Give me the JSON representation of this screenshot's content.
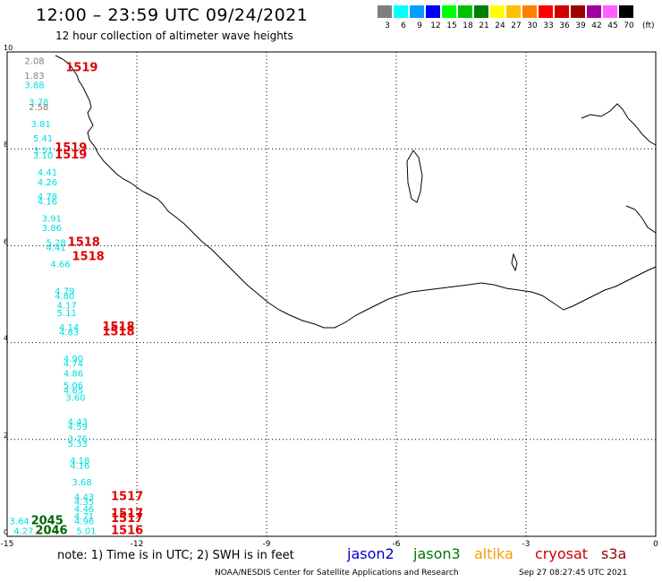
{
  "header": {
    "title": "12:00 – 23:59 UTC 09/24/2021",
    "subtitle": "12 hour collection of altimeter wave heights"
  },
  "legend": {
    "unit": "(ft)",
    "bins": [
      {
        "label": "3",
        "color": "#7f7f7f"
      },
      {
        "label": "6",
        "color": "#00ffff"
      },
      {
        "label": "9",
        "color": "#00a0ff"
      },
      {
        "label": "12",
        "color": "#0000ff"
      },
      {
        "label": "15",
        "color": "#00ff00"
      },
      {
        "label": "18",
        "color": "#00c000"
      },
      {
        "label": "21",
        "color": "#008000"
      },
      {
        "label": "24",
        "color": "#ffff00"
      },
      {
        "label": "27",
        "color": "#ffc000"
      },
      {
        "label": "30",
        "color": "#ff8000"
      },
      {
        "label": "33",
        "color": "#ff0000"
      },
      {
        "label": "36",
        "color": "#d00000"
      },
      {
        "label": "39",
        "color": "#a00000"
      },
      {
        "label": "42",
        "color": "#a000a0"
      },
      {
        "label": "45",
        "color": "#ff60ff"
      },
      {
        "label": "70",
        "color": "#000000"
      }
    ]
  },
  "map": {
    "x_ticks": [
      "-15",
      "-12",
      "-9",
      "-6",
      "-3",
      "0"
    ],
    "y_ticks": [
      "0",
      "2",
      "4",
      "6",
      "8",
      "10"
    ],
    "lon_range": [
      -15,
      0
    ],
    "lat_range": [
      0,
      10
    ]
  },
  "wave_heights": [
    {
      "value": "2.08",
      "lon": -14.6,
      "lat": 9.75,
      "color": "#7f7f7f"
    },
    {
      "value": "1.83",
      "lon": -14.6,
      "lat": 9.45,
      "color": "#7f7f7f"
    },
    {
      "value": "3.88",
      "lon": -14.6,
      "lat": 9.25,
      "color": "#00dddd"
    },
    {
      "value": "3.78",
      "lon": -14.5,
      "lat": 8.9,
      "color": "#00dddd"
    },
    {
      "value": "2.58",
      "lon": -14.5,
      "lat": 8.8,
      "color": "#7f7f7f"
    },
    {
      "value": "3.81",
      "lon": -14.45,
      "lat": 8.45,
      "color": "#00dddd"
    },
    {
      "value": "5.41",
      "lon": -14.4,
      "lat": 8.15,
      "color": "#00dddd"
    },
    {
      "value": "3.51",
      "lon": -14.4,
      "lat": 7.9,
      "color": "#00dddd"
    },
    {
      "value": "3.10",
      "lon": -14.4,
      "lat": 7.8,
      "color": "#00dddd"
    },
    {
      "value": "4.41",
      "lon": -14.3,
      "lat": 7.45,
      "color": "#00dddd"
    },
    {
      "value": "4.26",
      "lon": -14.3,
      "lat": 7.25,
      "color": "#00dddd"
    },
    {
      "value": "4.78",
      "lon": -14.3,
      "lat": 6.95,
      "color": "#00dddd"
    },
    {
      "value": "4.16",
      "lon": -14.3,
      "lat": 6.85,
      "color": "#00dddd"
    },
    {
      "value": "3.91",
      "lon": -14.2,
      "lat": 6.5,
      "color": "#00dddd"
    },
    {
      "value": "3.86",
      "lon": -14.2,
      "lat": 6.3,
      "color": "#00dddd"
    },
    {
      "value": "5.28",
      "lon": -14.1,
      "lat": 6.0,
      "color": "#00dddd"
    },
    {
      "value": "4.41",
      "lon": -14.1,
      "lat": 5.9,
      "color": "#00dddd"
    },
    {
      "value": "4.66",
      "lon": -14.0,
      "lat": 5.55,
      "color": "#00dddd"
    },
    {
      "value": "4.79",
      "lon": -13.9,
      "lat": 5.0,
      "color": "#00dddd"
    },
    {
      "value": "4.80",
      "lon": -13.9,
      "lat": 4.9,
      "color": "#00dddd"
    },
    {
      "value": "4.17",
      "lon": -13.85,
      "lat": 4.7,
      "color": "#00dddd"
    },
    {
      "value": "5.11",
      "lon": -13.85,
      "lat": 4.55,
      "color": "#00dddd"
    },
    {
      "value": "4.14",
      "lon": -13.8,
      "lat": 4.25,
      "color": "#00dddd"
    },
    {
      "value": "4.83",
      "lon": -13.8,
      "lat": 4.15,
      "color": "#00dddd"
    },
    {
      "value": "4.90",
      "lon": -13.7,
      "lat": 3.6,
      "color": "#00dddd"
    },
    {
      "value": "4.74",
      "lon": -13.7,
      "lat": 3.5,
      "color": "#00dddd"
    },
    {
      "value": "4.86",
      "lon": -13.7,
      "lat": 3.3,
      "color": "#00dddd"
    },
    {
      "value": "5.06",
      "lon": -13.7,
      "lat": 3.05,
      "color": "#00dddd"
    },
    {
      "value": "4.65",
      "lon": -13.7,
      "lat": 2.95,
      "color": "#00dddd"
    },
    {
      "value": "3.60",
      "lon": -13.65,
      "lat": 2.8,
      "color": "#00dddd"
    },
    {
      "value": "4.43",
      "lon": -13.6,
      "lat": 2.3,
      "color": "#00dddd"
    },
    {
      "value": "4.59",
      "lon": -13.6,
      "lat": 2.2,
      "color": "#00dddd"
    },
    {
      "value": "3.76",
      "lon": -13.6,
      "lat": 1.95,
      "color": "#00dddd"
    },
    {
      "value": "5.33",
      "lon": -13.6,
      "lat": 1.85,
      "color": "#00dddd"
    },
    {
      "value": "4.18",
      "lon": -13.55,
      "lat": 1.5,
      "color": "#00dddd"
    },
    {
      "value": "4.16",
      "lon": -13.55,
      "lat": 1.4,
      "color": "#00dddd"
    },
    {
      "value": "3.68",
      "lon": -13.5,
      "lat": 1.05,
      "color": "#00dddd"
    },
    {
      "value": "4.43",
      "lon": -13.45,
      "lat": 0.75,
      "color": "#00dddd"
    },
    {
      "value": "4.35",
      "lon": -13.45,
      "lat": 0.65,
      "color": "#00dddd"
    },
    {
      "value": "4.46",
      "lon": -13.45,
      "lat": 0.5,
      "color": "#00dddd"
    },
    {
      "value": "4.71",
      "lon": -13.45,
      "lat": 0.35,
      "color": "#00dddd"
    },
    {
      "value": "4.96",
      "lon": -13.45,
      "lat": 0.25,
      "color": "#00dddd"
    },
    {
      "value": "5.01",
      "lon": -13.4,
      "lat": 0.05,
      "color": "#00dddd"
    },
    {
      "value": "3.64",
      "lon": -14.95,
      "lat": 0.25,
      "color": "#00dddd"
    },
    {
      "value": "4.27",
      "lon": -14.85,
      "lat": 0.05,
      "color": "#00dddd"
    }
  ],
  "pass_times": [
    {
      "value": "1519",
      "lon": -13.65,
      "lat": 9.6,
      "color": "#e00000"
    },
    {
      "value": "1519",
      "lon": -13.9,
      "lat": 7.95,
      "color": "#e00000"
    },
    {
      "value": "1519",
      "lon": -13.9,
      "lat": 7.8,
      "color": "#e00000"
    },
    {
      "value": "1518",
      "lon": -13.6,
      "lat": 6.0,
      "color": "#e00000"
    },
    {
      "value": "1518",
      "lon": -13.5,
      "lat": 5.7,
      "color": "#e00000"
    },
    {
      "value": "1518",
      "lon": -12.8,
      "lat": 4.25,
      "color": "#e00000"
    },
    {
      "value": "1518",
      "lon": -12.8,
      "lat": 4.15,
      "color": "#e00000"
    },
    {
      "value": "1517",
      "lon": -12.6,
      "lat": 0.75,
      "color": "#e00000"
    },
    {
      "value": "1517",
      "lon": -12.6,
      "lat": 0.4,
      "color": "#e00000"
    },
    {
      "value": "1517",
      "lon": -12.6,
      "lat": 0.3,
      "color": "#e00000"
    },
    {
      "value": "1516",
      "lon": -12.6,
      "lat": 0.05,
      "color": "#e00000"
    },
    {
      "value": "2045",
      "lon": -14.45,
      "lat": 0.25,
      "color": "#006600"
    },
    {
      "value": "2046",
      "lon": -14.35,
      "lat": 0.05,
      "color": "#006600"
    }
  ],
  "footer": {
    "note": "note: 1) Time is in UTC; 2) SWH is in feet",
    "satellites": [
      {
        "name": "jason2",
        "color": "#0000cc"
      },
      {
        "name": "jason3",
        "color": "#007700"
      },
      {
        "name": "altika",
        "color": "#ff9900"
      },
      {
        "name": "cryosat",
        "color": "#cc0000"
      },
      {
        "name": "s3a",
        "color": "#990000"
      }
    ],
    "credit": "NOAA/NESDIS Center for Satellite Applications and Research",
    "timestamp": "Sep 27 08:27:45 UTC 2021"
  }
}
